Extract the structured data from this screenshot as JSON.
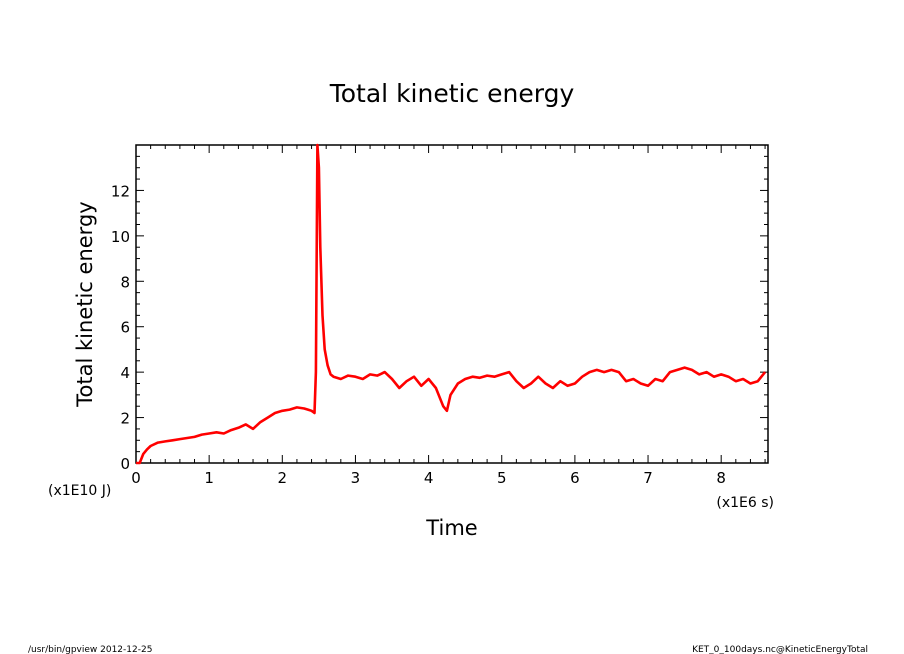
{
  "chart_data": {
    "type": "line",
    "title": "Total kinetic energy",
    "xlabel": "Time",
    "ylabel": "Total kinetic energy",
    "x_unit": "(x1E6 s)",
    "y_unit": "(x1E10 J)",
    "xlim": [
      0,
      8.64
    ],
    "ylim": [
      0,
      14
    ],
    "x_ticks": [
      0,
      1,
      2,
      3,
      4,
      5,
      6,
      7,
      8
    ],
    "y_ticks": [
      0,
      2,
      4,
      6,
      8,
      10,
      12
    ],
    "grid": false,
    "line_color": "#ff0000",
    "series": [
      {
        "x": [
          0,
          0.05,
          0.1,
          0.15,
          0.2,
          0.3,
          0.4,
          0.5,
          0.6,
          0.7,
          0.8,
          0.9,
          1.0,
          1.1,
          1.2,
          1.3,
          1.4,
          1.5,
          1.6,
          1.7,
          1.8,
          1.9,
          2.0,
          2.1,
          2.2,
          2.3,
          2.35,
          2.4,
          2.44,
          2.46,
          2.48,
          2.5,
          2.52,
          2.55,
          2.58,
          2.62,
          2.66,
          2.7,
          2.8,
          2.9,
          3.0,
          3.1,
          3.2,
          3.3,
          3.4,
          3.5,
          3.6,
          3.7,
          3.8,
          3.9,
          4.0,
          4.1,
          4.2,
          4.25,
          4.3,
          4.4,
          4.5,
          4.6,
          4.7,
          4.8,
          4.9,
          5.0,
          5.1,
          5.2,
          5.3,
          5.4,
          5.5,
          5.6,
          5.7,
          5.8,
          5.9,
          6.0,
          6.1,
          6.2,
          6.3,
          6.4,
          6.5,
          6.6,
          6.7,
          6.8,
          6.9,
          7.0,
          7.1,
          7.2,
          7.3,
          7.4,
          7.5,
          7.6,
          7.7,
          7.8,
          7.9,
          8.0,
          8.1,
          8.2,
          8.3,
          8.4,
          8.5,
          8.6
        ],
        "y": [
          0,
          0,
          0.4,
          0.6,
          0.75,
          0.9,
          0.95,
          1.0,
          1.05,
          1.1,
          1.15,
          1.25,
          1.3,
          1.35,
          1.3,
          1.45,
          1.55,
          1.7,
          1.5,
          1.8,
          2.0,
          2.2,
          2.3,
          2.35,
          2.45,
          2.4,
          2.35,
          2.3,
          2.2,
          4.0,
          14.0,
          13.0,
          9.5,
          6.5,
          5.0,
          4.3,
          3.9,
          3.8,
          3.7,
          3.85,
          3.8,
          3.7,
          3.9,
          3.85,
          4.0,
          3.7,
          3.3,
          3.6,
          3.8,
          3.4,
          3.7,
          3.3,
          2.5,
          2.3,
          3.0,
          3.5,
          3.7,
          3.8,
          3.75,
          3.85,
          3.8,
          3.9,
          4.0,
          3.6,
          3.3,
          3.5,
          3.8,
          3.5,
          3.3,
          3.6,
          3.4,
          3.5,
          3.8,
          4.0,
          4.1,
          4.0,
          4.1,
          4.0,
          3.6,
          3.7,
          3.5,
          3.4,
          3.7,
          3.6,
          4.0,
          4.1,
          4.2,
          4.1,
          3.9,
          4.0,
          3.8,
          3.9,
          3.8,
          3.6,
          3.7,
          3.5,
          3.6,
          4.0
        ]
      }
    ]
  },
  "footer": {
    "left": "/usr/bin/gpview  2012-12-25",
    "right": "KET_0_100days.nc@KineticEnergyTotal"
  }
}
